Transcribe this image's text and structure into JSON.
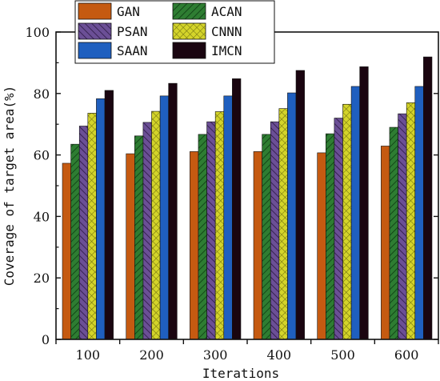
{
  "chart_data": {
    "type": "bar",
    "title": "",
    "xlabel": "Iterations",
    "ylabel": "Coverage of target area(%)",
    "categories": [
      "100",
      "200",
      "300",
      "400",
      "500",
      "600"
    ],
    "ylim": [
      0,
      100
    ],
    "yticks": [
      "0",
      "20",
      "40",
      "60",
      "80",
      "100"
    ],
    "legend_position": "top-left",
    "series": [
      {
        "name": "GAN",
        "color": "#c55a11",
        "pattern": "solid",
        "values": [
          57.3,
          60.4,
          61.1,
          61.1,
          60.7,
          62.9
        ]
      },
      {
        "name": "ACAN",
        "color": "#2e7d32",
        "pattern": "hatch-down",
        "values": [
          63.5,
          66.2,
          66.7,
          66.7,
          66.9,
          69.0
        ]
      },
      {
        "name": "PSAN",
        "color": "#6b4f96",
        "pattern": "hatch-up",
        "values": [
          69.4,
          70.6,
          70.8,
          70.8,
          72.0,
          73.4
        ]
      },
      {
        "name": "CNNN",
        "color": "#d4d42a",
        "pattern": "crosshatch",
        "values": [
          73.6,
          74.2,
          74.1,
          75.1,
          76.5,
          77.0
        ]
      },
      {
        "name": "SAAN",
        "color": "#1f5fbf",
        "pattern": "solid",
        "values": [
          78.3,
          79.2,
          79.2,
          80.2,
          82.3,
          82.3
        ]
      },
      {
        "name": "IMCN",
        "color": "#1a0510",
        "pattern": "solid",
        "values": [
          81.0,
          83.3,
          84.8,
          87.5,
          88.7,
          91.9
        ]
      }
    ]
  }
}
